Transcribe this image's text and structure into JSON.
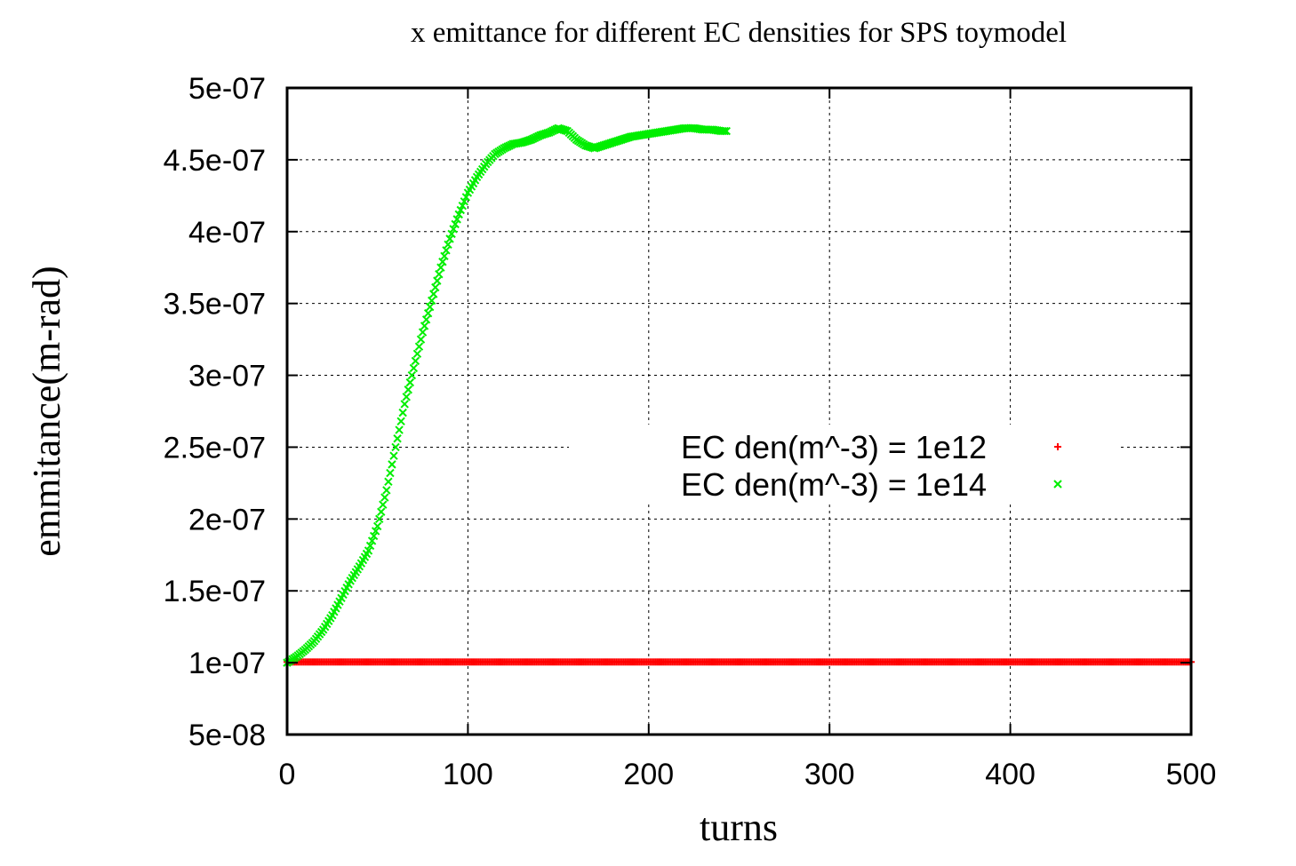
{
  "chart_data": {
    "type": "scatter",
    "title": "x emittance for different EC densities for SPS toymodel",
    "xlabel": "turns",
    "ylabel": "emmitance(m-rad)",
    "xlim": [
      0,
      500
    ],
    "ylim": [
      5e-08,
      5e-07
    ],
    "xticks": [
      0,
      100,
      200,
      300,
      400,
      500
    ],
    "xtick_labels": [
      "0",
      "100",
      "200",
      "300",
      "400",
      "500"
    ],
    "yticks": [
      5e-08,
      1e-07,
      1.5e-07,
      2e-07,
      2.5e-07,
      3e-07,
      3.5e-07,
      4e-07,
      4.5e-07,
      5e-07
    ],
    "ytick_labels": [
      "5e-08",
      "1e-07",
      "1.5e-07",
      "2e-07",
      "2.5e-07",
      "3e-07",
      "3.5e-07",
      "4e-07",
      "4.5e-07",
      "5e-07"
    ],
    "grid": true,
    "legend_position": "center-right",
    "series": [
      {
        "name": "EC den(m^-3) = 1e12",
        "color": "#ff0000",
        "marker": "plus",
        "x_start": 0,
        "x_end": 500,
        "x_step": 1,
        "y_value": 1.005e-07
      },
      {
        "name": "EC den(m^-3) = 1e14",
        "color": "#00ee00",
        "marker": "cross",
        "x_step": 1,
        "x": [
          0,
          5,
          10,
          15,
          20,
          25,
          30,
          35,
          40,
          45,
          50,
          55,
          60,
          65,
          70,
          75,
          80,
          85,
          90,
          95,
          100,
          105,
          110,
          115,
          120,
          125,
          130,
          135,
          140,
          145,
          150,
          155,
          160,
          165,
          170,
          175,
          180,
          185,
          190,
          195,
          200,
          205,
          210,
          215,
          220,
          225,
          230,
          235,
          240,
          243
        ],
        "y": [
          1e-07,
          1.04e-07,
          1.09e-07,
          1.15e-07,
          1.23e-07,
          1.33e-07,
          1.45e-07,
          1.57e-07,
          1.67e-07,
          1.78e-07,
          1.95e-07,
          2.2e-07,
          2.5e-07,
          2.8e-07,
          3.05e-07,
          3.3e-07,
          3.52e-07,
          3.75e-07,
          3.95e-07,
          4.12e-07,
          4.27e-07,
          4.38e-07,
          4.47e-07,
          4.54e-07,
          4.58e-07,
          4.61e-07,
          4.62e-07,
          4.64e-07,
          4.67e-07,
          4.69e-07,
          4.72e-07,
          4.7e-07,
          4.64e-07,
          4.6e-07,
          4.58e-07,
          4.6e-07,
          4.62e-07,
          4.64e-07,
          4.66e-07,
          4.67e-07,
          4.68e-07,
          4.69e-07,
          4.7e-07,
          4.71e-07,
          4.72e-07,
          4.72e-07,
          4.71e-07,
          4.71e-07,
          4.7e-07,
          4.7e-07
        ]
      }
    ]
  }
}
